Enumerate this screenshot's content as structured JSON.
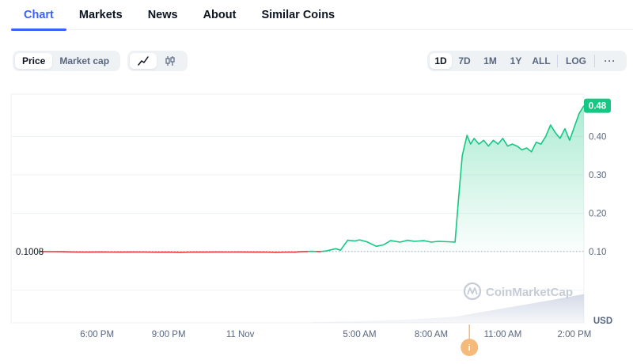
{
  "tabs": [
    {
      "label": "Chart",
      "active": true
    },
    {
      "label": "Markets",
      "active": false
    },
    {
      "label": "News",
      "active": false
    },
    {
      "label": "About",
      "active": false
    },
    {
      "label": "Similar Coins",
      "active": false
    }
  ],
  "toolbar": {
    "metric": {
      "price": "Price",
      "market_cap": "Market cap",
      "selected": "Price"
    },
    "chart_style": {
      "line_icon": "line-chart-icon",
      "candle_icon": "candlestick-icon",
      "selected": "line"
    },
    "ranges": [
      "1D",
      "7D",
      "1M",
      "1Y",
      "ALL"
    ],
    "selected_range": "1D",
    "log_label": "LOG",
    "more_label": "···"
  },
  "watermark": "CoinMarketCap",
  "event_marker": "i",
  "colors": {
    "up": "#16c784",
    "down": "#ea3943",
    "accent": "#3861fb",
    "marker": "#f5b97a"
  },
  "chart_data": {
    "type": "line",
    "currency": "USD",
    "open_price_label": "0.1008",
    "open_price": 0.1008,
    "current_price_label": "0.48",
    "current_price": 0.48,
    "ylim": [
      -0.085,
      0.51
    ],
    "y_ticks": [
      0.1,
      0.2,
      0.3,
      0.4
    ],
    "y_tick_labels": [
      "0.10",
      "0.20",
      "0.30",
      "0.40"
    ],
    "x_ticks": [
      {
        "t": 4.0,
        "label": "6:00 PM"
      },
      {
        "t": 7.0,
        "label": "9:00 PM"
      },
      {
        "t": 10.0,
        "label": "11 Nov"
      },
      {
        "t": 15.0,
        "label": "5:00 AM"
      },
      {
        "t": 18.0,
        "label": "8:00 AM"
      },
      {
        "t": 21.0,
        "label": "11:00 AM"
      },
      {
        "t": 24.0,
        "label": "2:00 PM"
      }
    ],
    "xlim": [
      0.0,
      24.4
    ],
    "event_t": 19.6,
    "series": [
      {
        "values": [
          [
            1.55,
            0.101
          ],
          [
            2.0,
            0.1002
          ],
          [
            2.5,
            0.1
          ],
          [
            3.0,
            0.0995
          ],
          [
            3.5,
            0.099
          ],
          [
            4.0,
            0.0995
          ],
          [
            4.5,
            0.0992
          ],
          [
            5.0,
            0.099
          ],
          [
            5.5,
            0.0995
          ],
          [
            6.0,
            0.0992
          ],
          [
            6.5,
            0.0988
          ],
          [
            7.0,
            0.099
          ],
          [
            7.5,
            0.0985
          ],
          [
            8.0,
            0.0993
          ],
          [
            8.5,
            0.099
          ],
          [
            9.0,
            0.0995
          ],
          [
            9.5,
            0.0992
          ],
          [
            10.0,
            0.0995
          ],
          [
            10.5,
            0.099
          ],
          [
            11.0,
            0.0992
          ],
          [
            11.5,
            0.0985
          ],
          [
            12.0,
            0.0993
          ],
          [
            12.3,
            0.0988
          ],
          [
            12.5,
            0.1
          ],
          [
            13.0,
            0.1012
          ],
          [
            13.3,
            0.1005
          ],
          [
            13.6,
            0.102
          ],
          [
            14.0,
            0.108
          ],
          [
            14.2,
            0.104
          ],
          [
            14.5,
            0.13
          ],
          [
            14.8,
            0.128
          ],
          [
            15.0,
            0.131
          ],
          [
            15.3,
            0.126
          ],
          [
            15.7,
            0.114
          ],
          [
            16.0,
            0.118
          ],
          [
            16.3,
            0.129
          ],
          [
            16.7,
            0.125
          ],
          [
            17.0,
            0.13
          ],
          [
            17.3,
            0.127
          ],
          [
            17.7,
            0.129
          ],
          [
            18.0,
            0.125
          ],
          [
            18.3,
            0.127
          ],
          [
            18.7,
            0.126
          ],
          [
            19.0,
            0.125
          ],
          [
            19.15,
            0.24
          ],
          [
            19.3,
            0.35
          ],
          [
            19.5,
            0.403
          ],
          [
            19.65,
            0.38
          ],
          [
            19.8,
            0.395
          ],
          [
            20.0,
            0.38
          ],
          [
            20.2,
            0.39
          ],
          [
            20.4,
            0.375
          ],
          [
            20.6,
            0.39
          ],
          [
            20.8,
            0.38
          ],
          [
            21.0,
            0.395
          ],
          [
            21.2,
            0.375
          ],
          [
            21.4,
            0.38
          ],
          [
            21.6,
            0.375
          ],
          [
            21.8,
            0.365
          ],
          [
            22.0,
            0.37
          ],
          [
            22.2,
            0.36
          ],
          [
            22.4,
            0.385
          ],
          [
            22.6,
            0.38
          ],
          [
            22.8,
            0.4
          ],
          [
            23.0,
            0.43
          ],
          [
            23.2,
            0.41
          ],
          [
            23.4,
            0.395
          ],
          [
            23.6,
            0.42
          ],
          [
            23.8,
            0.39
          ],
          [
            24.0,
            0.425
          ],
          [
            24.2,
            0.46
          ],
          [
            24.4,
            0.48
          ]
        ]
      }
    ],
    "volume": [
      [
        13.0,
        0.002
      ],
      [
        15.0,
        0.004
      ],
      [
        17.0,
        0.008
      ],
      [
        19.0,
        0.015
      ],
      [
        20.0,
        0.025
      ],
      [
        21.0,
        0.035
      ],
      [
        22.0,
        0.045
      ],
      [
        23.0,
        0.055
      ],
      [
        24.4,
        0.07
      ]
    ]
  }
}
